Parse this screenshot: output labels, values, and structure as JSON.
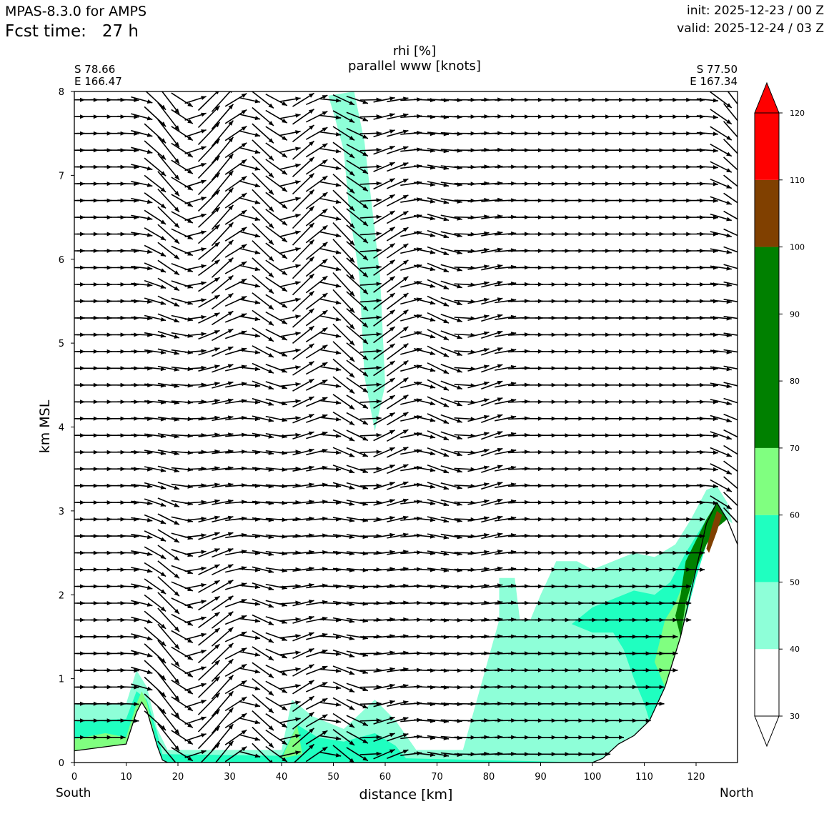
{
  "header": {
    "model": "MPAS-8.3.0 for AMPS",
    "fcst_time": "Fcst time:   27 h",
    "init": "init: 2025-12-23 / 00 Z",
    "valid": "valid: 2025-12-24 / 03 Z"
  },
  "section": {
    "start_lat": "S 78.66",
    "start_lon": "E 166.47",
    "end_lat": "S 77.50",
    "end_lon": "E 167.34",
    "start_label": "South",
    "end_label": "North"
  },
  "chart_data": {
    "type": "contourf with wind vectors",
    "title": [
      "rhi [%]",
      "parallel www [knots]"
    ],
    "xlabel": "distance [km]",
    "ylabel": "km MSL",
    "xlim": [
      0,
      128
    ],
    "ylim": [
      0,
      8
    ],
    "xticks": [
      0,
      10,
      20,
      30,
      40,
      50,
      60,
      70,
      80,
      90,
      100,
      110,
      120
    ],
    "yticks": [
      0,
      1,
      2,
      3,
      4,
      5,
      6,
      7,
      8
    ],
    "colorbar": {
      "levels": [
        30,
        40,
        50,
        60,
        70,
        80,
        90,
        100,
        110,
        120
      ],
      "tick_labels": [
        "30",
        "40",
        "50",
        "60",
        "70",
        "80",
        "90",
        "100",
        "110",
        "120"
      ],
      "bands": [
        {
          "from": 30,
          "to": 40,
          "color": "#ffffff"
        },
        {
          "from": 40,
          "to": 50,
          "color": "#8effd8"
        },
        {
          "from": 50,
          "to": 60,
          "color": "#1fffc0"
        },
        {
          "from": 60,
          "to": 70,
          "color": "#80ff80"
        },
        {
          "from": 70,
          "to": 100,
          "color": "#008000"
        },
        {
          "from": 100,
          "to": 110,
          "color": "#804000"
        },
        {
          "from": 110,
          "to": 120,
          "color": "#ff0000"
        }
      ],
      "extend": "both",
      "extend_colors": {
        "min": "#ffffff",
        "max": "#ff0000"
      }
    },
    "terrain_km": [
      [
        0,
        0.14
      ],
      [
        10,
        0.22
      ],
      [
        12,
        0.6
      ],
      [
        13,
        0.72
      ],
      [
        14,
        0.62
      ],
      [
        16,
        0.2
      ],
      [
        17,
        0.03
      ],
      [
        18,
        0.0
      ],
      [
        100,
        0.0
      ],
      [
        102,
        0.05
      ],
      [
        105,
        0.22
      ],
      [
        108,
        0.32
      ],
      [
        111,
        0.5
      ],
      [
        114,
        0.9
      ],
      [
        117,
        1.5
      ],
      [
        120,
        2.3
      ],
      [
        122,
        2.85
      ],
      [
        124,
        3.1
      ],
      [
        126,
        2.9
      ],
      [
        128,
        2.6
      ]
    ],
    "rhi_regions": [
      {
        "band": "40-50",
        "polygon": [
          [
            49,
            7.95
          ],
          [
            54,
            8.0
          ],
          [
            56,
            7.4
          ],
          [
            59,
            5.8
          ],
          [
            60,
            4.5
          ],
          [
            58,
            3.95
          ],
          [
            56,
            4.6
          ],
          [
            55,
            5.8
          ],
          [
            53,
            6.6
          ],
          [
            52,
            7.3
          ],
          [
            50,
            7.75
          ]
        ]
      },
      {
        "band": "40-50",
        "polygon": [
          [
            0,
            0.7
          ],
          [
            10,
            0.7
          ],
          [
            12,
            1.1
          ],
          [
            14,
            0.9
          ],
          [
            16,
            0.4
          ],
          [
            18,
            0.15
          ],
          [
            40,
            0.15
          ],
          [
            42,
            0.75
          ],
          [
            46,
            0.55
          ],
          [
            52,
            0.4
          ],
          [
            58,
            0.75
          ],
          [
            62,
            0.5
          ],
          [
            66,
            0.15
          ],
          [
            75,
            0.15
          ],
          [
            82,
            1.7
          ],
          [
            82,
            2.2
          ],
          [
            85,
            2.2
          ],
          [
            86,
            1.7
          ],
          [
            88,
            1.7
          ],
          [
            90,
            2.0
          ],
          [
            93,
            2.4
          ],
          [
            97,
            2.4
          ],
          [
            100,
            2.3
          ],
          [
            104,
            2.4
          ],
          [
            108,
            2.5
          ],
          [
            112,
            2.45
          ],
          [
            116,
            2.6
          ],
          [
            119,
            2.9
          ],
          [
            122,
            3.25
          ],
          [
            124,
            3.3
          ],
          [
            126,
            3.1
          ],
          [
            127,
            2.85
          ],
          [
            126,
            2.9
          ],
          [
            124,
            3.1
          ],
          [
            122,
            2.85
          ],
          [
            120,
            2.3
          ],
          [
            117,
            1.5
          ],
          [
            114,
            0.9
          ],
          [
            111,
            0.5
          ],
          [
            108,
            0.32
          ],
          [
            105,
            0.22
          ],
          [
            102,
            0.05
          ],
          [
            100,
            0.0
          ],
          [
            18,
            0.0
          ],
          [
            17,
            0.03
          ],
          [
            16,
            0.2
          ],
          [
            14,
            0.62
          ],
          [
            13,
            0.72
          ],
          [
            12,
            0.6
          ],
          [
            10,
            0.22
          ],
          [
            0,
            0.14
          ]
        ]
      },
      {
        "band": "50-60",
        "polygon": [
          [
            0,
            0.5
          ],
          [
            10,
            0.52
          ],
          [
            12,
            0.85
          ],
          [
            14,
            0.75
          ],
          [
            16,
            0.35
          ],
          [
            17,
            0.1
          ],
          [
            40,
            0.08
          ],
          [
            43,
            0.45
          ],
          [
            47,
            0.3
          ],
          [
            52,
            0.25
          ],
          [
            58,
            0.35
          ],
          [
            62,
            0.2
          ],
          [
            64,
            0.05
          ],
          [
            100,
            0.0
          ],
          [
            18,
            0.0
          ],
          [
            17,
            0.03
          ],
          [
            16,
            0.2
          ],
          [
            14,
            0.62
          ],
          [
            13,
            0.72
          ],
          [
            12,
            0.6
          ],
          [
            10,
            0.22
          ],
          [
            0,
            0.14
          ]
        ]
      },
      {
        "band": "50-60",
        "polygon": [
          [
            96,
            1.65
          ],
          [
            100,
            1.85
          ],
          [
            104,
            1.95
          ],
          [
            108,
            2.05
          ],
          [
            112,
            2.0
          ],
          [
            115,
            2.15
          ],
          [
            118,
            2.5
          ],
          [
            121,
            2.8
          ],
          [
            123,
            3.0
          ],
          [
            124,
            2.8
          ],
          [
            122,
            2.6
          ],
          [
            120,
            2.2
          ],
          [
            117,
            1.5
          ],
          [
            114,
            0.9
          ],
          [
            111,
            0.5
          ],
          [
            110,
            0.7
          ],
          [
            108,
            1.0
          ],
          [
            106,
            1.35
          ],
          [
            104,
            1.55
          ],
          [
            100,
            1.55
          ]
        ]
      },
      {
        "band": "60-70",
        "polygon": [
          [
            0,
            0.28
          ],
          [
            6,
            0.35
          ],
          [
            10,
            0.3
          ],
          [
            12,
            0.7
          ],
          [
            13,
            0.85
          ],
          [
            14,
            0.72
          ],
          [
            16,
            0.2
          ],
          [
            14,
            0.62
          ],
          [
            13,
            0.72
          ],
          [
            12,
            0.6
          ],
          [
            10,
            0.22
          ],
          [
            0,
            0.14
          ]
        ]
      },
      {
        "band": "60-70",
        "polygon": [
          [
            40,
            0.05
          ],
          [
            43,
            0.45
          ],
          [
            44,
            0.1
          ]
        ]
      },
      {
        "band": "60-70",
        "polygon": [
          [
            112,
            1.2
          ],
          [
            114,
            1.7
          ],
          [
            116,
            1.9
          ],
          [
            118,
            2.2
          ],
          [
            120,
            2.4
          ],
          [
            117,
            1.5
          ],
          [
            114,
            0.9
          ]
        ]
      },
      {
        "band": "70-100",
        "polygon": [
          [
            116,
            1.75
          ],
          [
            117,
            2.0
          ],
          [
            118,
            2.4
          ],
          [
            120,
            2.65
          ],
          [
            122,
            2.9
          ],
          [
            124,
            3.1
          ],
          [
            126,
            2.9
          ],
          [
            124,
            2.8
          ],
          [
            122,
            2.6
          ],
          [
            120,
            2.3
          ],
          [
            118,
            1.9
          ],
          [
            117,
            1.5
          ]
        ]
      },
      {
        "band": "100-110",
        "polygon": [
          [
            122,
            2.55
          ],
          [
            123,
            2.8
          ],
          [
            124,
            3.0
          ],
          [
            125,
            2.95
          ],
          [
            124,
            2.75
          ],
          [
            122.5,
            2.5
          ]
        ]
      }
    ],
    "wind_field_note": "parallel wind vectors (u,w) on grid x every ~2.6 km, z every 0.2 km"
  }
}
